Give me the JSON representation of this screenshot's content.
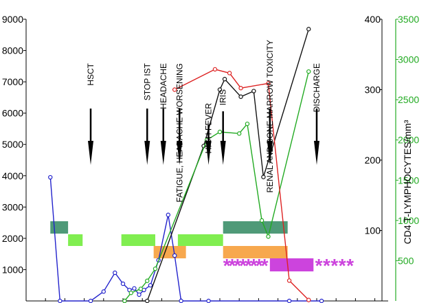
{
  "chart_data": {
    "type": "line",
    "title": "",
    "xlabel": "",
    "axes": {
      "left": {
        "ticks": [
          "9000",
          "8000",
          "7000",
          "6000",
          "5000",
          "4000",
          "3000",
          "2000",
          "1000"
        ],
        "range": [
          0,
          9000
        ]
      },
      "right_black": {
        "label": "CD4 T-LYMPHOCYTES/mm³",
        "ticks": [
          "400",
          "300",
          "200",
          "100"
        ],
        "range": [
          0,
          400
        ]
      },
      "right_green": {
        "ticks": [
          "3500",
          "3000",
          "2500",
          "2000",
          "1500",
          "1000",
          "500"
        ],
        "range": [
          0,
          3500
        ]
      }
    },
    "x_range": [
      0,
      22
    ],
    "series": [
      {
        "color": "#2222cc",
        "axis": "left",
        "points": [
          [
            1.5,
            3950
          ],
          [
            2.1,
            0
          ],
          [
            4.0,
            0
          ],
          [
            4.8,
            300
          ],
          [
            5.5,
            900
          ],
          [
            6.0,
            550
          ],
          [
            6.4,
            350
          ],
          [
            6.7,
            400
          ],
          [
            7.0,
            200
          ],
          [
            7.3,
            350
          ],
          [
            7.7,
            500
          ],
          [
            8.2,
            1300
          ],
          [
            8.8,
            2750
          ],
          [
            9.2,
            1450
          ],
          [
            9.6,
            0
          ],
          [
            11.3,
            0
          ],
          [
            16.3,
            0
          ],
          [
            18.3,
            0
          ]
        ]
      },
      {
        "color": "#111111",
        "axis": "right_black",
        "points": [
          [
            6.1,
            0
          ],
          [
            7.5,
            0
          ],
          [
            11.0,
            220
          ],
          [
            12.0,
            300
          ],
          [
            12.3,
            315
          ],
          [
            13.3,
            290
          ],
          [
            14.1,
            298
          ],
          [
            14.7,
            176
          ],
          [
            17.5,
            386
          ]
        ]
      },
      {
        "color": "#22aa22",
        "axis": "right_green",
        "points": [
          [
            6.1,
            0
          ],
          [
            6.5,
            100
          ],
          [
            7.1,
            150
          ],
          [
            7.5,
            250
          ],
          [
            8.0,
            400
          ],
          [
            11.2,
            2000
          ],
          [
            12.0,
            2100
          ],
          [
            13.2,
            2080
          ],
          [
            13.7,
            2200
          ],
          [
            14.6,
            1000
          ],
          [
            15.0,
            800
          ],
          [
            17.5,
            2850
          ]
        ]
      },
      {
        "color": "#dd2222",
        "axis": "left",
        "points": [
          [
            9.2,
            6750
          ],
          [
            11.7,
            7400
          ],
          [
            12.6,
            7280
          ],
          [
            13.3,
            6800
          ],
          [
            15.0,
            6950
          ],
          [
            16.3,
            650
          ],
          [
            17.5,
            30
          ]
        ]
      }
    ],
    "events": [
      {
        "label": "HSCT",
        "x": 4.0
      },
      {
        "label": "STOP IST",
        "x": 7.5
      },
      {
        "label": "HEADACHE",
        "x": 8.5
      },
      {
        "label": "FATIGUE, HEADACHE WORSENING",
        "x": 9.5
      },
      {
        "label": "HIGH FEVER",
        "x": 11.3
      },
      {
        "label": "IRIS",
        "x": 12.2
      },
      {
        "label": "RENAL AND BONE MARROW TOXICITY",
        "x": 15.1
      },
      {
        "label": "DISCHARGE",
        "x": 18.0
      }
    ],
    "bars": [
      {
        "color": "#4f9a78",
        "x0": 1.5,
        "x1": 2.6,
        "level": "top"
      },
      {
        "color": "#4f9a78",
        "x0": 12.2,
        "x1": 16.2,
        "level": "top"
      },
      {
        "color": "#80ee50",
        "x0": 2.6,
        "x1": 3.5,
        "level": "middle"
      },
      {
        "color": "#80ee50",
        "x0": 5.9,
        "x1": 8.0,
        "level": "middle"
      },
      {
        "color": "#80ee50",
        "x0": 9.4,
        "x1": 12.2,
        "level": "middle"
      },
      {
        "color": "#f7a84e",
        "x0": 7.9,
        "x1": 9.9,
        "level": "lower"
      },
      {
        "color": "#f7a84e",
        "x0": 12.2,
        "x1": 16.2,
        "level": "lower"
      },
      {
        "color": "#cc44dd",
        "x0": 15.1,
        "x1": 17.8,
        "level": "bottom"
      }
    ],
    "stars": [
      {
        "text": "********",
        "x0": 12.2,
        "x1": 15.0
      },
      {
        "text": "*****",
        "x0": 17.9,
        "x1": 20.3
      }
    ]
  }
}
